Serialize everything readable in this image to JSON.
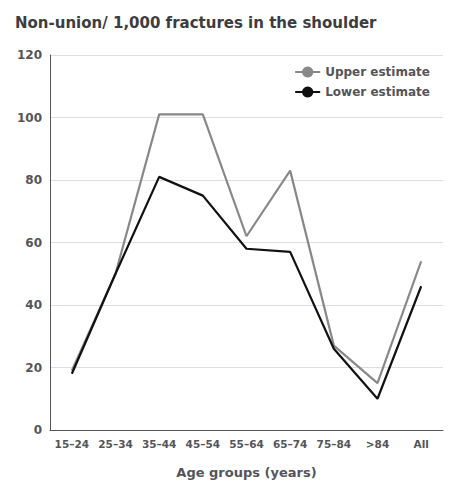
{
  "chart_data": {
    "type": "line",
    "title": "Non-union/ 1,000 fractures in the shoulder",
    "xlabel": "Age groups (years)",
    "categories": [
      "15–24",
      "25–34",
      "35–44",
      "45–54",
      "55–64",
      "65–74",
      "75–84",
      ">84",
      "All"
    ],
    "series": [
      {
        "name": "Upper estimate",
        "color": "#888888",
        "values": [
          19,
          50,
          101,
          101,
          62,
          83,
          27,
          15,
          54
        ]
      },
      {
        "name": "Lower estimate",
        "color": "#111111",
        "values": [
          18,
          50,
          81,
          75,
          58,
          57,
          26,
          10,
          46
        ]
      }
    ],
    "ylim": [
      0,
      120
    ],
    "yticks": [
      0,
      20,
      40,
      60,
      80,
      100,
      120
    ],
    "grid": true,
    "legend": "upper right"
  }
}
